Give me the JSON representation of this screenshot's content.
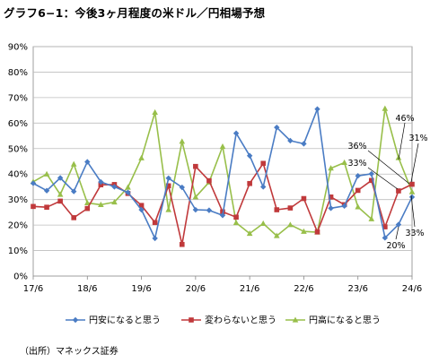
{
  "title": "グラフ6−1：今後3ヶ月程度の米ドル／円相場予想",
  "source": "（出所）マネックス証券",
  "chart_data": {
    "type": "line",
    "ylim": [
      0,
      90
    ],
    "y_ticks": [
      "0%",
      "10%",
      "20%",
      "30%",
      "40%",
      "50%",
      "60%",
      "70%",
      "80%",
      "90%"
    ],
    "x_ticks": [
      "17/6",
      "18/6",
      "19/6",
      "20/6",
      "21/6",
      "22/6",
      "23/6",
      "24/6"
    ],
    "grid": true,
    "legend_position": "bottom",
    "colors": {
      "yen_depreciation": "#4a7cc4",
      "unchanged": "#c0393b",
      "yen_appreciation": "#98bf4a"
    },
    "series": [
      {
        "name": "円安になると思う",
        "key": "yen_depreciation",
        "marker": "diamond",
        "values": [
          36.4,
          33.5,
          38.5,
          33.2,
          44.8,
          36.9,
          35.0,
          32.8,
          26.0,
          14.8,
          38.4,
          34.8,
          26.0,
          25.8,
          23.8,
          56.0,
          47.2,
          35.0,
          58.3,
          53.1,
          51.9,
          65.5,
          26.6,
          27.5,
          39.3,
          40.1,
          15.0,
          20.2,
          31.0
        ]
      },
      {
        "name": "変わらないと思う",
        "key": "unchanged",
        "marker": "square",
        "values": [
          27.3,
          27.0,
          29.4,
          22.9,
          26.5,
          35.8,
          35.9,
          32.4,
          27.7,
          21.0,
          35.4,
          12.4,
          43.0,
          37.4,
          25.2,
          23.1,
          36.3,
          44.2,
          26.0,
          26.7,
          30.4,
          17.3,
          31.0,
          28.0,
          33.6,
          37.5,
          19.3,
          33.4,
          36.0
        ]
      },
      {
        "name": "円高になると思う",
        "key": "yen_appreciation",
        "marker": "triangle",
        "values": [
          37.0,
          40.0,
          32.0,
          43.9,
          28.7,
          28.0,
          29.0,
          34.8,
          46.3,
          64.2,
          26.0,
          52.8,
          31.0,
          36.8,
          50.8,
          20.9,
          16.7,
          20.6,
          15.8,
          20.1,
          17.5,
          17.2,
          42.3,
          44.5,
          27.1,
          22.4,
          65.7,
          46.4,
          33.0
        ]
      }
    ],
    "annotations": [
      "46%",
      "31%",
      "36%",
      "33%",
      "20%",
      "33%"
    ]
  }
}
